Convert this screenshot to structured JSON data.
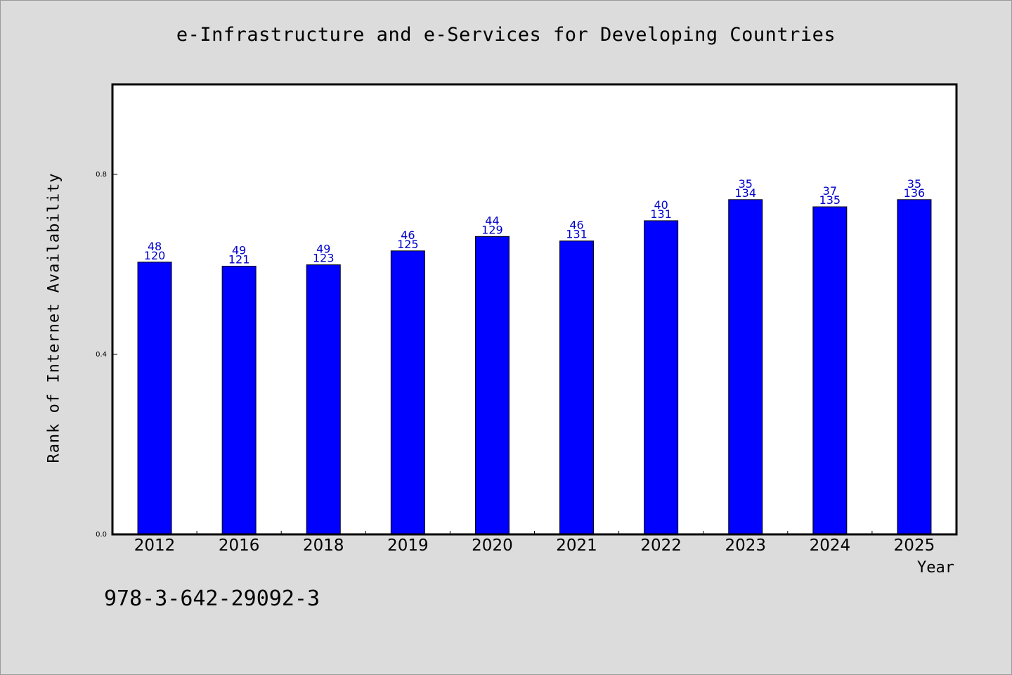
{
  "chart_data": {
    "type": "bar",
    "title": "e-Infrastructure and e-Services for Developing Countries",
    "xlabel": "Year",
    "ylabel": "Rank of Internet Availability",
    "ylim": [
      0,
      1.0
    ],
    "yticks": [
      "0.0",
      "0.4",
      "0.8"
    ],
    "grid": false,
    "categories": [
      "2012",
      "2016",
      "2018",
      "2019",
      "2020",
      "2021",
      "2022",
      "2023",
      "2024",
      "2025"
    ],
    "values": [
      0.605,
      0.596,
      0.599,
      0.63,
      0.662,
      0.652,
      0.697,
      0.744,
      0.728,
      0.744
    ],
    "data_labels": [
      [
        "48",
        "120"
      ],
      [
        "49",
        "121"
      ],
      [
        "49",
        "123"
      ],
      [
        "46",
        "125"
      ],
      [
        "44",
        "129"
      ],
      [
        "46",
        "131"
      ],
      [
        "40",
        "131"
      ],
      [
        "35",
        "134"
      ],
      [
        "37",
        "135"
      ],
      [
        "35",
        "136"
      ]
    ],
    "colors": {
      "bar": "#0000ff",
      "label": "#0000cc",
      "axis": "#000000",
      "plot_bg": "#ffffff"
    }
  },
  "footnote": "978-3-642-29092-3"
}
